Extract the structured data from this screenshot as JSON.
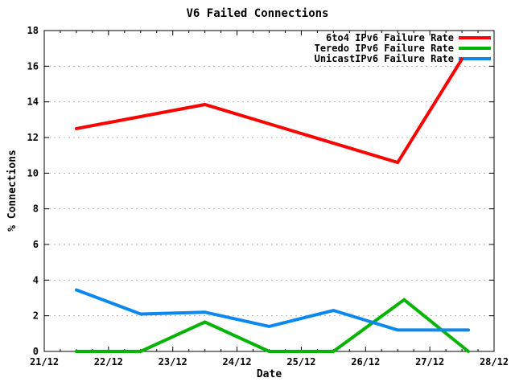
{
  "chart_data": {
    "type": "line",
    "title": "V6 Failed Connections",
    "xlabel": "Date",
    "ylabel": "% Connections",
    "xlim": [
      21,
      28
    ],
    "ylim": [
      0,
      18
    ],
    "x_tick_days": [
      21,
      22,
      23,
      24,
      25,
      26,
      27,
      28
    ],
    "x_tick_labels": [
      "21/12",
      "22/12",
      "23/12",
      "24/12",
      "25/12",
      "26/12",
      "27/12",
      "28/12"
    ],
    "minor_x_tick_step_days": 0.25,
    "y_ticks": [
      0,
      2,
      4,
      6,
      8,
      10,
      12,
      14,
      16,
      18
    ],
    "grid": "horizontal-dashed",
    "grid_color": "#b4b4b4",
    "frame_color": "#000000",
    "legend_position": "top-right-inside",
    "series": [
      {
        "name": "6to4 IPv6 Failure Rate",
        "color": "#ff0000",
        "x": [
          21.5,
          23.5,
          26.5,
          27.5
        ],
        "y": [
          12.5,
          13.85,
          10.6,
          16.4
        ]
      },
      {
        "name": "Teredo IPv6 Failure Rate",
        "color": "#00b400",
        "x": [
          21.5,
          22.5,
          23.5,
          24.5,
          25.5,
          26.6,
          27.6
        ],
        "y": [
          0,
          0,
          1.65,
          0,
          0,
          2.9,
          0
        ]
      },
      {
        "name": "UnicastIPv6 Failure Rate",
        "color": "#0b87f0",
        "x": [
          21.5,
          22.5,
          23.5,
          24.5,
          25.5,
          26.5,
          27.6
        ],
        "y": [
          3.45,
          2.1,
          2.2,
          1.4,
          2.3,
          1.2,
          1.2
        ]
      }
    ]
  }
}
